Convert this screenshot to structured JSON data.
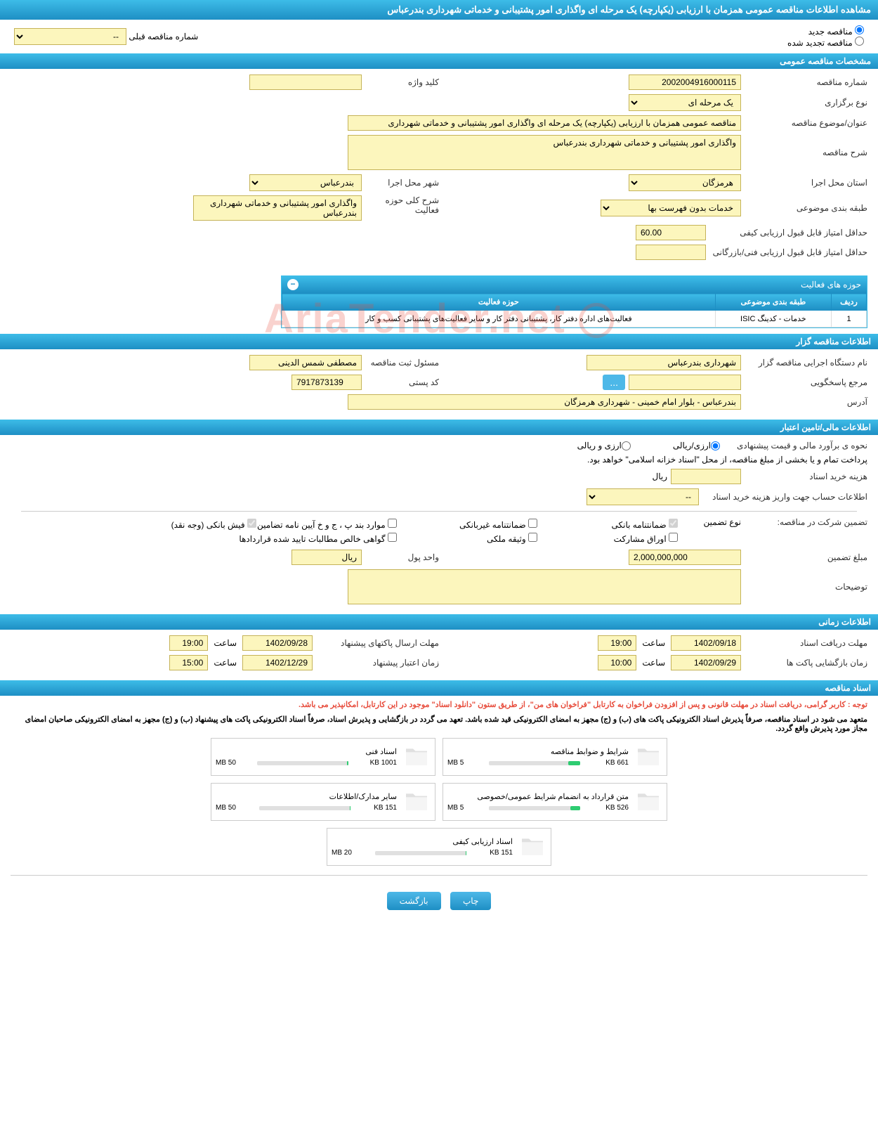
{
  "page_title": "مشاهده اطلاعات مناقصه عمومی همزمان با ارزیابی (یکپارچه) یک مرحله ای واگذاری امور پشتیبانی و خدماتی شهرداری بندرعباس",
  "watermark": "AriaTender.net",
  "radios": {
    "new": "مناقصه جدید",
    "renew": "مناقصه تجدید شده",
    "prev_label": "شماره مناقصه قبلی",
    "prev_value": "--"
  },
  "sections": {
    "general": "مشخصات مناقصه عمومی",
    "organizer": "اطلاعات مناقصه گزار",
    "financial": "اطلاعات مالی/تامین اعتبار",
    "timing": "اطلاعات زمانی",
    "documents": "اسناد مناقصه"
  },
  "general": {
    "tender_no_label": "شماره مناقصه",
    "tender_no": "2002004916000115",
    "keyword_label": "کلید واژه",
    "keyword": "",
    "type_label": "نوع برگزاری",
    "type": "یک مرحله ای",
    "subject_label": "عنوان/موضوع مناقصه",
    "subject": "مناقصه عمومی همزمان با ارزیابی (یکپارچه) یک مرحله ای واگذاری امور پشتیبانی و خدماتی شهرداری",
    "desc_label": "شرح مناقصه",
    "desc": "واگذاری امور پشتیبانی و خدماتی شهرداری بندرعباس",
    "province_label": "استان محل اجرا",
    "province": "هرمزگان",
    "city_label": "شهر محل اجرا",
    "city": "بندرعباس",
    "category_label": "طبقه بندی موضوعی",
    "category": "خدمات بدون فهرست بها",
    "activity_desc_label": "شرح کلی حوزه فعالیت",
    "activity_desc": "واگذاری امور پشتیبانی و خدماتی شهرداری بندرعباس",
    "min_quality_label": "حداقل امتیاز قابل قبول ارزیابی کیفی",
    "min_quality": "60.00",
    "min_tech_label": "حداقل امتیاز قابل قبول ارزیابی فنی/بازرگانی",
    "min_tech": ""
  },
  "activity_table": {
    "title": "حوزه های فعالیت",
    "headers": {
      "row": "ردیف",
      "category": "طبقه بندی موضوعی",
      "field": "حوزه فعالیت"
    },
    "row": {
      "num": "1",
      "category": "خدمات - کدینگ ISIC",
      "field": "فعالیت‌های اداره دفتر کار، پشتیبانی دفتر کار و سایر فعالیت‌های پشتیبانی کسب و کار"
    }
  },
  "organizer": {
    "exec_label": "نام دستگاه اجرایی مناقصه گزار",
    "exec": "شهرداری بندرعباس",
    "reg_person_label": "مسئول ثبت مناقصه",
    "reg_person": "مصطفی شمس الدینی",
    "response_label": "مرجع پاسخگویی",
    "response": "",
    "postcode_label": "کد پستی",
    "postcode": "7917873139",
    "address_label": "آدرس",
    "address": "بندرعباس - بلوار امام خمینی - شهرداری هرمزگان"
  },
  "financial": {
    "estimate_label": "نحوه ی برآورد مالی و قیمت پیشنهادی",
    "opt_rial": "ارزی/ریالی",
    "opt_both": "ارزی و ریالی",
    "payment_note": "پرداخت تمام و یا بخشی از مبلغ مناقصه، از محل \"اسناد خزانه اسلامی\" خواهد بود.",
    "doc_cost_label": "هزینه خرید اسناد",
    "doc_cost": "",
    "doc_cost_unit": "ریال",
    "account_label": "اطلاعات حساب جهت واریز هزینه خرید اسناد",
    "account": "--",
    "guarantee_label": "تضمین شرکت در مناقصه:",
    "guarantee_type_label": "نوع تضمین",
    "chk_bank_guarantee": "ضمانتنامه بانکی",
    "chk_nonbank_guarantee": "ضمانتنامه غیربانکی",
    "chk_clauses": "موارد بند پ ، ج و خ آیین نامه تضامین",
    "chk_cash": "فیش بانکی (وجه نقد)",
    "chk_bonds": "اوراق مشارکت",
    "chk_property": "وثیقه ملکی",
    "chk_receivables": "گواهی خالص مطالبات تایید شده قراردادها",
    "amount_label": "مبلغ تضمین",
    "amount": "2,000,000,000",
    "unit_label": "واحد پول",
    "unit": "ریال",
    "desc_label": "توضیحات",
    "desc": ""
  },
  "timing": {
    "receive_label": "مهلت دریافت اسناد",
    "receive_date": "1402/09/18",
    "receive_time_label": "ساعت",
    "receive_time": "19:00",
    "send_label": "مهلت ارسال پاکتهای پیشنهاد",
    "send_date": "1402/09/28",
    "send_time_label": "ساعت",
    "send_time": "19:00",
    "open_label": "زمان بازگشایی پاکت ها",
    "open_date": "1402/09/29",
    "open_time_label": "ساعت",
    "open_time": "10:00",
    "validity_label": "زمان اعتبار پیشنهاد",
    "validity_date": "1402/12/29",
    "validity_time_label": "ساعت",
    "validity_time": "15:00"
  },
  "documents": {
    "note1": "توجه : کاربر گرامی، دریافت اسناد در مهلت قانونی و پس از افزودن فراخوان به کارتابل \"فراخوان های من\"، از طریق ستون \"دانلود اسناد\" موجود در این کارتابل، امکانپذیر می باشد.",
    "note2": "متعهد می شود در اسناد مناقصه، صرفاً پذیرش اسناد الکترونیکی پاکت های (ب) و (ج) مجهز به امضای الکترونیکی قید شده باشد. تعهد می گردد در بازگشایی و پذیرش اسناد، صرفاً اسناد الکترونیکی پاکت های پیشنهاد (ب) و (ج) مجهز به امضای الکترونیکی صاحبان امضای مجاز مورد پذیرش واقع گردد.",
    "files": [
      {
        "title": "شرایط و ضوابط مناقصه",
        "used": "661 KB",
        "total": "5 MB",
        "fill": 13
      },
      {
        "title": "اسناد فنی",
        "used": "1001 KB",
        "total": "50 MB",
        "fill": 2
      },
      {
        "title": "متن قرارداد به انضمام شرایط عمومی/خصوصی",
        "used": "526 KB",
        "total": "5 MB",
        "fill": 11
      },
      {
        "title": "سایر مدارک/اطلاعات",
        "used": "151 KB",
        "total": "50 MB",
        "fill": 1
      },
      {
        "title": "اسناد ارزیابی کیفی",
        "used": "151 KB",
        "total": "20 MB",
        "fill": 1
      }
    ]
  },
  "buttons": {
    "print": "چاپ",
    "back": "بازگشت"
  }
}
